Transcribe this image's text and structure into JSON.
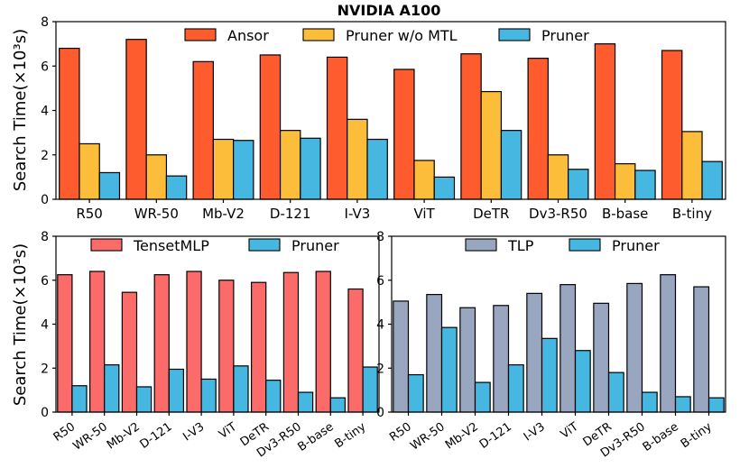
{
  "figure_title": "NVIDIA A100",
  "colors": {
    "ansor": "#fe5b2e",
    "pruner_wo_mtl": "#fcbe3a",
    "pruner": "#46b7e0",
    "tensetmlp": "#fb6b6a",
    "tlp": "#98a6c0"
  },
  "chart_data": [
    {
      "type": "bar",
      "title": "NVIDIA A100",
      "ylabel": "Search Time(×10³s)",
      "xlabel": "",
      "ylim": [
        0,
        8
      ],
      "yticks": [
        "0",
        "2",
        "4",
        "6",
        "8"
      ],
      "categories": [
        "R50",
        "WR-50",
        "Mb-V2",
        "D-121",
        "I-V3",
        "ViT",
        "DeTR",
        "Dv3-R50",
        "B-base",
        "B-tiny"
      ],
      "legend_position": "top",
      "series": [
        {
          "name": "Ansor",
          "color_key": "ansor",
          "values": [
            6.8,
            7.2,
            6.2,
            6.5,
            6.4,
            5.85,
            6.55,
            6.35,
            7.0,
            6.7
          ]
        },
        {
          "name": "Pruner w/o MTL",
          "color_key": "pruner_wo_mtl",
          "values": [
            2.5,
            2.0,
            2.7,
            3.1,
            3.6,
            1.75,
            4.85,
            2.0,
            1.6,
            3.05
          ]
        },
        {
          "name": "Pruner",
          "color_key": "pruner",
          "values": [
            1.2,
            1.05,
            2.65,
            2.75,
            2.7,
            1.0,
            3.1,
            1.35,
            1.3,
            1.7
          ]
        }
      ]
    },
    {
      "type": "bar",
      "title": "",
      "ylabel": "Search Time(×10³s)",
      "xlabel": "",
      "ylim": [
        0,
        8
      ],
      "yticks": [
        "0",
        "2",
        "4",
        "6",
        "8"
      ],
      "categories": [
        "R50",
        "WR-50",
        "Mb-V2",
        "D-121",
        "I-V3",
        "ViT",
        "DeTR",
        "Dv3-R50",
        "B-base",
        "B-tiny"
      ],
      "legend_position": "top",
      "series": [
        {
          "name": "TensetMLP",
          "color_key": "tensetmlp",
          "values": [
            6.25,
            6.4,
            5.45,
            6.25,
            6.4,
            6.0,
            5.9,
            6.35,
            6.4,
            5.6
          ]
        },
        {
          "name": "Pruner",
          "color_key": "pruner",
          "values": [
            1.2,
            2.15,
            1.15,
            1.95,
            1.5,
            2.1,
            1.45,
            0.9,
            0.65,
            2.05
          ]
        }
      ]
    },
    {
      "type": "bar",
      "title": "",
      "ylabel": "",
      "xlabel": "",
      "ylim": [
        0,
        8
      ],
      "yticks": [
        "0",
        "2",
        "4",
        "6",
        "8"
      ],
      "categories": [
        "R50",
        "WR-50",
        "Mb-V2",
        "D-121",
        "I-V3",
        "ViT",
        "DeTR",
        "Dv3-R50",
        "B-base",
        "B-tiny"
      ],
      "legend_position": "top",
      "series": [
        {
          "name": "TLP",
          "color_key": "tlp",
          "values": [
            5.05,
            5.35,
            4.75,
            4.85,
            5.4,
            5.8,
            4.95,
            5.85,
            6.25,
            5.7
          ]
        },
        {
          "name": "Pruner",
          "color_key": "pruner",
          "values": [
            1.7,
            3.85,
            1.35,
            2.15,
            3.35,
            2.8,
            1.8,
            0.9,
            0.7,
            0.65
          ]
        }
      ]
    }
  ]
}
